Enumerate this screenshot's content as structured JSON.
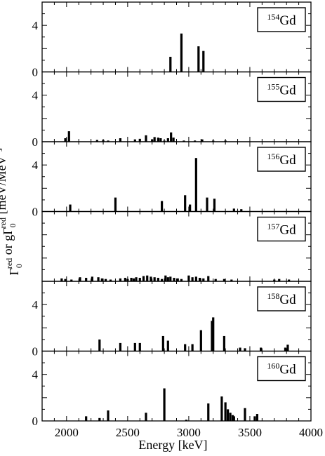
{
  "chart_data": {
    "type": "bar",
    "xlabel": "Energy [keV]",
    "ylabel": {
      "parts": [
        {
          "t": "Γ",
          "sub": "0",
          "sup": "red"
        },
        {
          "t": " or gΓ",
          "sub": "0",
          "sup": "red"
        },
        {
          "t": " [meV/MeV",
          "sup": "3"
        },
        {
          "t": "]"
        }
      ]
    },
    "xlim": [
      1800,
      4000
    ],
    "x_ticks": [
      2000,
      2500,
      3000,
      3500,
      4000
    ],
    "panels": [
      {
        "label_mass": "154",
        "label_el": "Gd",
        "ylim": [
          0,
          6
        ],
        "y_ticks": [
          0,
          4
        ],
        "bars": [
          {
            "x": 2850,
            "y": 1.3
          },
          {
            "x": 2940,
            "y": 3.3
          },
          {
            "x": 3080,
            "y": 2.2
          },
          {
            "x": 3120,
            "y": 1.8
          }
        ]
      },
      {
        "label_mass": "155",
        "label_el": "Gd",
        "ylim": [
          0,
          6
        ],
        "y_ticks": [
          0,
          4
        ],
        "bars": [
          {
            "x": 1990,
            "y": 0.3
          },
          {
            "x": 2020,
            "y": 0.9
          },
          {
            "x": 2250,
            "y": 0.15
          },
          {
            "x": 2300,
            "y": 0.15
          },
          {
            "x": 2340,
            "y": 0.1
          },
          {
            "x": 2440,
            "y": 0.3
          },
          {
            "x": 2560,
            "y": 0.2
          },
          {
            "x": 2600,
            "y": 0.25
          },
          {
            "x": 2650,
            "y": 0.55
          },
          {
            "x": 2700,
            "y": 0.2
          },
          {
            "x": 2720,
            "y": 0.4
          },
          {
            "x": 2750,
            "y": 0.35
          },
          {
            "x": 2770,
            "y": 0.3
          },
          {
            "x": 2800,
            "y": 0.1
          },
          {
            "x": 2830,
            "y": 0.3
          },
          {
            "x": 2855,
            "y": 0.8
          },
          {
            "x": 2875,
            "y": 0.35
          },
          {
            "x": 2960,
            "y": 0.1
          },
          {
            "x": 3050,
            "y": 0.1
          },
          {
            "x": 3110,
            "y": 0.2
          },
          {
            "x": 3200,
            "y": 0.1
          },
          {
            "x": 3300,
            "y": 0.1
          }
        ]
      },
      {
        "label_mass": "156",
        "label_el": "Gd",
        "ylim": [
          0,
          6
        ],
        "y_ticks": [
          0,
          4
        ],
        "bars": [
          {
            "x": 2030,
            "y": 0.6
          },
          {
            "x": 2400,
            "y": 1.2
          },
          {
            "x": 2780,
            "y": 0.9
          },
          {
            "x": 2970,
            "y": 1.4
          },
          {
            "x": 3010,
            "y": 0.6
          },
          {
            "x": 3060,
            "y": 4.6
          },
          {
            "x": 3150,
            "y": 1.2
          },
          {
            "x": 3210,
            "y": 1.1
          },
          {
            "x": 3370,
            "y": 0.25
          },
          {
            "x": 3430,
            "y": 0.2
          }
        ]
      },
      {
        "label_mass": "157",
        "label_el": "Gd",
        "ylim": [
          0,
          6
        ],
        "y_ticks": [],
        "bars": [
          {
            "x": 1960,
            "y": 0.25
          },
          {
            "x": 1990,
            "y": 0.2
          },
          {
            "x": 2040,
            "y": 0.15
          },
          {
            "x": 2110,
            "y": 0.35
          },
          {
            "x": 2160,
            "y": 0.3
          },
          {
            "x": 2210,
            "y": 0.4
          },
          {
            "x": 2260,
            "y": 0.35
          },
          {
            "x": 2290,
            "y": 0.25
          },
          {
            "x": 2320,
            "y": 0.2
          },
          {
            "x": 2360,
            "y": 0.15
          },
          {
            "x": 2440,
            "y": 0.25
          },
          {
            "x": 2480,
            "y": 0.3
          },
          {
            "x": 2500,
            "y": 0.2
          },
          {
            "x": 2530,
            "y": 0.3
          },
          {
            "x": 2550,
            "y": 0.25
          },
          {
            "x": 2570,
            "y": 0.35
          },
          {
            "x": 2600,
            "y": 0.3
          },
          {
            "x": 2630,
            "y": 0.45
          },
          {
            "x": 2660,
            "y": 0.5
          },
          {
            "x": 2690,
            "y": 0.4
          },
          {
            "x": 2720,
            "y": 0.35
          },
          {
            "x": 2750,
            "y": 0.3
          },
          {
            "x": 2780,
            "y": 0.2
          },
          {
            "x": 2810,
            "y": 0.5
          },
          {
            "x": 2830,
            "y": 0.35
          },
          {
            "x": 2850,
            "y": 0.4
          },
          {
            "x": 2880,
            "y": 0.3
          },
          {
            "x": 2910,
            "y": 0.25
          },
          {
            "x": 2940,
            "y": 0.2
          },
          {
            "x": 3000,
            "y": 0.5
          },
          {
            "x": 3030,
            "y": 0.35
          },
          {
            "x": 3060,
            "y": 0.4
          },
          {
            "x": 3090,
            "y": 0.3
          },
          {
            "x": 3120,
            "y": 0.25
          },
          {
            "x": 3160,
            "y": 0.45
          },
          {
            "x": 3220,
            "y": 0.2
          },
          {
            "x": 3290,
            "y": 0.2
          },
          {
            "x": 3350,
            "y": 0.15
          },
          {
            "x": 3700,
            "y": 0.15
          },
          {
            "x": 3740,
            "y": 0.2
          },
          {
            "x": 3820,
            "y": 0.15
          }
        ]
      },
      {
        "label_mass": "158",
        "label_el": "Gd",
        "ylim": [
          0,
          6
        ],
        "y_ticks": [
          0,
          4
        ],
        "bars": [
          {
            "x": 2270,
            "y": 1.0
          },
          {
            "x": 2440,
            "y": 0.7
          },
          {
            "x": 2560,
            "y": 0.7
          },
          {
            "x": 2600,
            "y": 0.7
          },
          {
            "x": 2790,
            "y": 1.3
          },
          {
            "x": 2830,
            "y": 0.9
          },
          {
            "x": 2970,
            "y": 0.6
          },
          {
            "x": 3030,
            "y": 0.6
          },
          {
            "x": 3100,
            "y": 1.8
          },
          {
            "x": 3190,
            "y": 2.6
          },
          {
            "x": 3200,
            "y": 2.9
          },
          {
            "x": 3290,
            "y": 1.3
          },
          {
            "x": 3420,
            "y": 0.3
          },
          {
            "x": 3460,
            "y": 0.25
          },
          {
            "x": 3590,
            "y": 0.3
          },
          {
            "x": 3790,
            "y": 0.3
          },
          {
            "x": 3810,
            "y": 0.55
          }
        ]
      },
      {
        "label_mass": "160",
        "label_el": "Gd",
        "ylim": [
          0,
          6
        ],
        "y_ticks": [
          0,
          4
        ],
        "bars": [
          {
            "x": 2160,
            "y": 0.4
          },
          {
            "x": 2270,
            "y": 0.25
          },
          {
            "x": 2340,
            "y": 0.9
          },
          {
            "x": 2650,
            "y": 0.7
          },
          {
            "x": 2800,
            "y": 2.8
          },
          {
            "x": 2980,
            "y": 0.1
          },
          {
            "x": 3160,
            "y": 1.5
          },
          {
            "x": 3270,
            "y": 2.1
          },
          {
            "x": 3300,
            "y": 1.6
          },
          {
            "x": 3320,
            "y": 1.0
          },
          {
            "x": 3340,
            "y": 0.7
          },
          {
            "x": 3360,
            "y": 0.5
          },
          {
            "x": 3370,
            "y": 0.4
          },
          {
            "x": 3460,
            "y": 1.1
          },
          {
            "x": 3540,
            "y": 0.4
          },
          {
            "x": 3560,
            "y": 0.6
          }
        ]
      }
    ]
  }
}
